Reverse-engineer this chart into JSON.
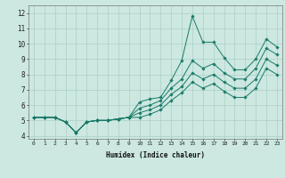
{
  "title": "",
  "xlabel": "Humidex (Indice chaleur)",
  "xlim": [
    -0.5,
    23.5
  ],
  "ylim": [
    3.8,
    12.5
  ],
  "yticks": [
    4,
    5,
    6,
    7,
    8,
    9,
    10,
    11,
    12
  ],
  "xticks": [
    0,
    1,
    2,
    3,
    4,
    5,
    6,
    7,
    8,
    9,
    10,
    11,
    12,
    13,
    14,
    15,
    16,
    17,
    18,
    19,
    20,
    21,
    22,
    23
  ],
  "bg_color": "#cce8e0",
  "line_color": "#1a7a6a",
  "grid_color": "#aacfc8",
  "series": [
    [
      5.2,
      5.2,
      5.2,
      4.9,
      4.2,
      4.9,
      5.0,
      5.0,
      5.1,
      5.2,
      6.2,
      6.4,
      6.5,
      7.6,
      8.9,
      11.8,
      10.1,
      10.1,
      9.1,
      8.3,
      8.3,
      9.0,
      10.3,
      9.8
    ],
    [
      5.2,
      5.2,
      5.2,
      4.9,
      4.2,
      4.9,
      5.0,
      5.0,
      5.1,
      5.2,
      5.8,
      6.0,
      6.3,
      7.1,
      7.7,
      8.9,
      8.4,
      8.7,
      8.1,
      7.7,
      7.7,
      8.4,
      9.7,
      9.3
    ],
    [
      5.2,
      5.2,
      5.2,
      4.9,
      4.2,
      4.9,
      5.0,
      5.0,
      5.1,
      5.2,
      5.5,
      5.7,
      6.0,
      6.7,
      7.2,
      8.1,
      7.7,
      8.0,
      7.5,
      7.1,
      7.1,
      7.7,
      9.0,
      8.6
    ],
    [
      5.2,
      5.2,
      5.2,
      4.9,
      4.2,
      4.9,
      5.0,
      5.0,
      5.1,
      5.2,
      5.2,
      5.4,
      5.7,
      6.3,
      6.8,
      7.5,
      7.1,
      7.4,
      6.9,
      6.5,
      6.5,
      7.1,
      8.4,
      8.0
    ]
  ]
}
